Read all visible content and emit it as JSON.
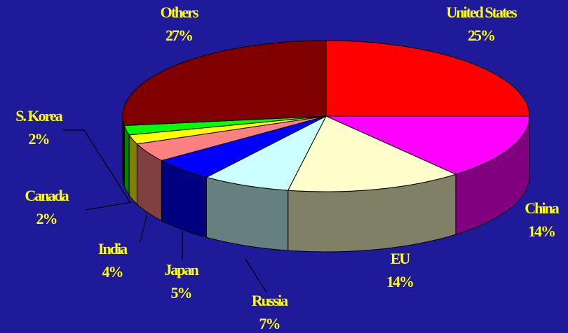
{
  "chart_data": {
    "type": "pie",
    "categories": [
      "United States",
      "China",
      "EU",
      "Russia",
      "Japan",
      "India",
      "Canada",
      "S. Korea",
      "Others"
    ],
    "values": [
      25,
      14,
      14,
      7,
      5,
      4,
      2,
      2,
      27
    ],
    "value_labels": [
      "25%",
      "14%",
      "14%",
      "7%",
      "5%",
      "4%",
      "2%",
      "2%",
      "27%"
    ],
    "colors": [
      "#ff0000",
      "#ff00ff",
      "#ffffcc",
      "#ccffff",
      "#0000ff",
      "#ff8080",
      "#ffff00",
      "#00ff00",
      "#800000"
    ]
  }
}
